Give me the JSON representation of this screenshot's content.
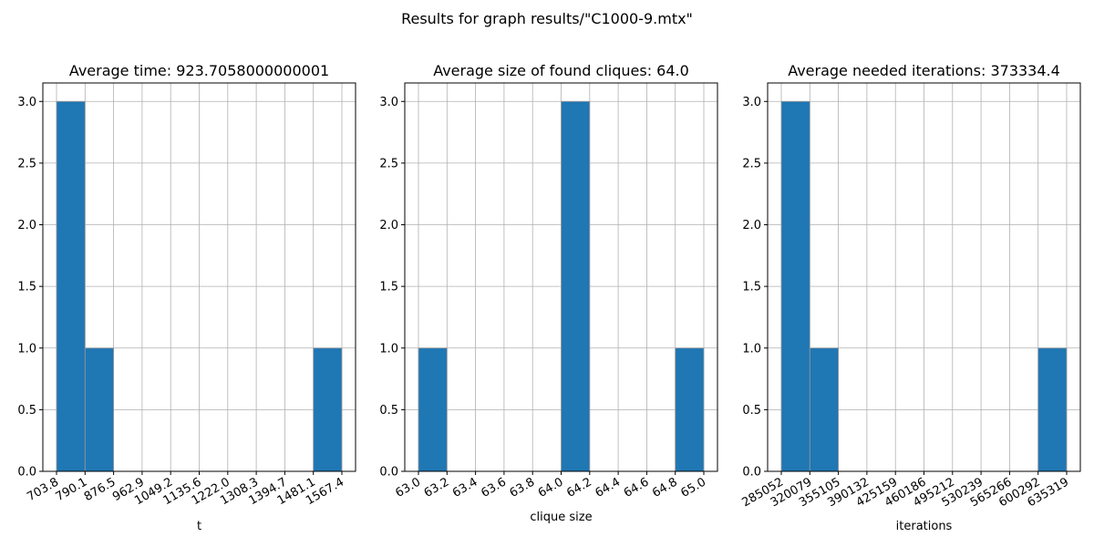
{
  "figure_title": "Results for graph results/\"C1000-9.mtx\"",
  "chart_data": [
    {
      "type": "bar",
      "title": "Average time: 923.7058000000001",
      "xlabel": "t",
      "ylabel": "",
      "bin_edges": [
        703.8,
        790.1,
        876.5,
        962.9,
        1049.2,
        1135.6,
        1222.0,
        1308.3,
        1394.7,
        1481.1,
        1567.4
      ],
      "xtick_labels": [
        "703.8",
        "790.1",
        "876.5",
        "962.9",
        "1049.2",
        "1135.6",
        "1222.0",
        "1308.3",
        "1394.7",
        "1481.1",
        "1567.4"
      ],
      "values": [
        3,
        1,
        0,
        0,
        0,
        0,
        0,
        0,
        0,
        1
      ],
      "ylim": [
        0,
        3.15
      ],
      "yticks": [
        "0.0",
        "0.5",
        "1.0",
        "1.5",
        "2.0",
        "2.5",
        "3.0"
      ],
      "grid": true
    },
    {
      "type": "bar",
      "title": "Average size of found cliques: 64.0",
      "xlabel": "clique size",
      "ylabel": "",
      "bin_edges": [
        63.0,
        63.2,
        63.4,
        63.6,
        63.8,
        64.0,
        64.2,
        64.4,
        64.6,
        64.8,
        65.0
      ],
      "xtick_labels": [
        "63.0",
        "63.2",
        "63.4",
        "63.6",
        "63.8",
        "64.0",
        "64.2",
        "64.4",
        "64.6",
        "64.8",
        "65.0"
      ],
      "values": [
        1,
        0,
        0,
        0,
        0,
        3,
        0,
        0,
        0,
        1
      ],
      "ylim": [
        0,
        3.15
      ],
      "yticks": [
        "0.0",
        "0.5",
        "1.0",
        "1.5",
        "2.0",
        "2.5",
        "3.0"
      ],
      "grid": true
    },
    {
      "type": "bar",
      "title": "Average needed iterations: 373334.4",
      "xlabel": "iterations",
      "ylabel": "",
      "bin_edges": [
        285052,
        320079,
        355105,
        390132,
        425159,
        460186,
        495212,
        530239,
        565266,
        600292,
        635319
      ],
      "xtick_labels": [
        "285052",
        "320079",
        "355105",
        "390132",
        "425159",
        "460186",
        "495212",
        "530239",
        "565266",
        "600292",
        "635319"
      ],
      "values": [
        3,
        1,
        0,
        0,
        0,
        0,
        0,
        0,
        0,
        1
      ],
      "ylim": [
        0,
        3.15
      ],
      "yticks": [
        "0.0",
        "0.5",
        "1.0",
        "1.5",
        "2.0",
        "2.5",
        "3.0"
      ],
      "grid": true
    }
  ]
}
